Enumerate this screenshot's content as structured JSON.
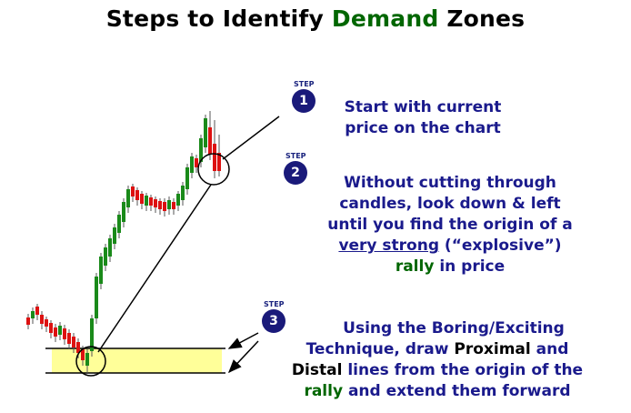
{
  "title": {
    "prefix": "Steps to Identify ",
    "highlight": "Demand",
    "suffix": " Zones"
  },
  "steps": [
    {
      "label": "STEP",
      "number": "1",
      "lines": [
        "Start with current",
        "price on the chart"
      ]
    },
    {
      "label": "STEP",
      "number": "2",
      "lines": [
        "Without cutting through",
        "candles, look down & left",
        "until you find the origin of a"
      ],
      "line4_underlined": "very strong",
      "line4_rest": " (“explosive”)",
      "line5_green": "rally",
      "line5_rest": " in price"
    },
    {
      "label": "STEP",
      "number": "3",
      "line1": "Using the Boring/Exciting",
      "line2_a": "Technique, draw ",
      "line2_b": "Proximal",
      "line2_c": " and",
      "line3_a": "Distal",
      "line3_b": " lines from the origin of the",
      "line4_green": "rally",
      "line4_rest": " and extend them forward"
    }
  ],
  "colors": {
    "title_green": "#006600",
    "text_blue": "#1a1a8c",
    "candle_up": "#1a8a1a",
    "candle_down": "#dd1111",
    "zone_fill": "#ffff99"
  }
}
